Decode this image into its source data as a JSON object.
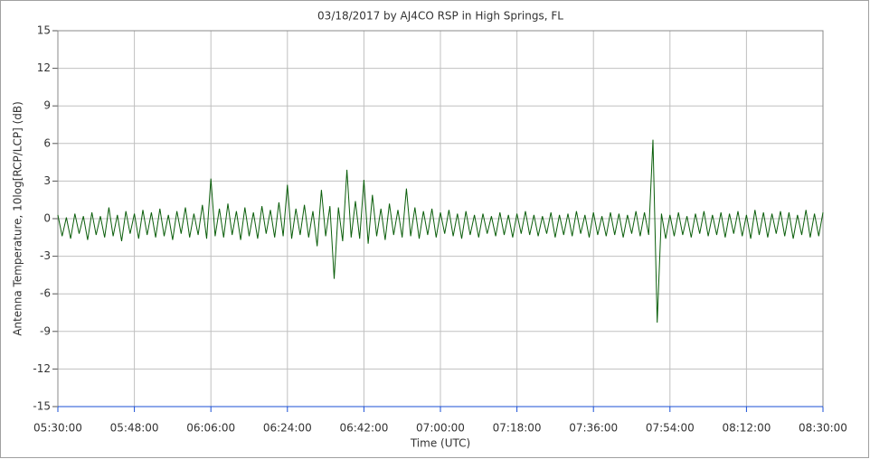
{
  "chart_data": {
    "type": "line",
    "title": "03/18/2017  by  AJ4CO RSP  in  High Springs, FL",
    "x_label": "Time (UTC)",
    "y_label": "Antenna Temperature, 10log[RCP/LCP] (dB)",
    "xlim": [
      "05:30:00",
      "08:30:00"
    ],
    "xticks": [
      "05:30:00",
      "05:48:00",
      "06:06:00",
      "06:24:00",
      "06:42:00",
      "07:00:00",
      "07:18:00",
      "07:36:00",
      "07:54:00",
      "08:12:00",
      "08:30:00"
    ],
    "ylim": [
      -15,
      15
    ],
    "yticks": [
      -15,
      -12,
      -9,
      -6,
      -3,
      0,
      3,
      6,
      9,
      12,
      15
    ],
    "grid": true,
    "x": [
      "05:30:00",
      "05:31:00",
      "05:32:00",
      "05:33:00",
      "05:34:00",
      "05:35:00",
      "05:36:00",
      "05:37:00",
      "05:38:00",
      "05:39:00",
      "05:40:00",
      "05:41:00",
      "05:42:00",
      "05:43:00",
      "05:44:00",
      "05:45:00",
      "05:46:00",
      "05:47:00",
      "05:48:00",
      "05:49:00",
      "05:50:00",
      "05:51:00",
      "05:52:00",
      "05:53:00",
      "05:54:00",
      "05:55:00",
      "05:56:00",
      "05:57:00",
      "05:58:00",
      "05:59:00",
      "06:00:00",
      "06:01:00",
      "06:02:00",
      "06:03:00",
      "06:04:00",
      "06:05:00",
      "06:06:00",
      "06:07:00",
      "06:08:00",
      "06:09:00",
      "06:10:00",
      "06:11:00",
      "06:12:00",
      "06:13:00",
      "06:14:00",
      "06:15:00",
      "06:16:00",
      "06:17:00",
      "06:18:00",
      "06:19:00",
      "06:20:00",
      "06:21:00",
      "06:22:00",
      "06:23:00",
      "06:24:00",
      "06:25:00",
      "06:26:00",
      "06:27:00",
      "06:28:00",
      "06:29:00",
      "06:30:00",
      "06:31:00",
      "06:32:00",
      "06:33:00",
      "06:34:00",
      "06:35:00",
      "06:36:00",
      "06:37:00",
      "06:38:00",
      "06:39:00",
      "06:40:00",
      "06:41:00",
      "06:42:00",
      "06:43:00",
      "06:44:00",
      "06:45:00",
      "06:46:00",
      "06:47:00",
      "06:48:00",
      "06:49:00",
      "06:50:00",
      "06:51:00",
      "06:52:00",
      "06:53:00",
      "06:54:00",
      "06:55:00",
      "06:56:00",
      "06:57:00",
      "06:58:00",
      "06:59:00",
      "07:00:00",
      "07:01:00",
      "07:02:00",
      "07:03:00",
      "07:04:00",
      "07:05:00",
      "07:06:00",
      "07:07:00",
      "07:08:00",
      "07:09:00",
      "07:10:00",
      "07:11:00",
      "07:12:00",
      "07:13:00",
      "07:14:00",
      "07:15:00",
      "07:16:00",
      "07:17:00",
      "07:18:00",
      "07:19:00",
      "07:20:00",
      "07:21:00",
      "07:22:00",
      "07:23:00",
      "07:24:00",
      "07:25:00",
      "07:26:00",
      "07:27:00",
      "07:28:00",
      "07:29:00",
      "07:30:00",
      "07:31:00",
      "07:32:00",
      "07:33:00",
      "07:34:00",
      "07:35:00",
      "07:36:00",
      "07:37:00",
      "07:38:00",
      "07:39:00",
      "07:40:00",
      "07:41:00",
      "07:42:00",
      "07:43:00",
      "07:44:00",
      "07:45:00",
      "07:46:00",
      "07:47:00",
      "07:48:00",
      "07:49:00",
      "07:50:00",
      "07:51:00",
      "07:52:00",
      "07:53:00",
      "07:54:00",
      "07:55:00",
      "07:56:00",
      "07:57:00",
      "07:58:00",
      "07:59:00",
      "08:00:00",
      "08:01:00",
      "08:02:00",
      "08:03:00",
      "08:04:00",
      "08:05:00",
      "08:06:00",
      "08:07:00",
      "08:08:00",
      "08:09:00",
      "08:10:00",
      "08:11:00",
      "08:12:00",
      "08:13:00",
      "08:14:00",
      "08:15:00",
      "08:16:00",
      "08:17:00",
      "08:18:00",
      "08:19:00",
      "08:20:00",
      "08:21:00",
      "08:22:00",
      "08:23:00",
      "08:24:00",
      "08:25:00",
      "08:26:00",
      "08:27:00",
      "08:28:00",
      "08:29:00",
      "08:30:00"
    ],
    "color": "#0b5e0b",
    "values": [
      0.3,
      -1.4,
      0.1,
      -1.6,
      0.4,
      -1.2,
      0.2,
      -1.7,
      0.5,
      -1.3,
      0.2,
      -1.5,
      0.9,
      -1.4,
      0.3,
      -1.8,
      0.6,
      -1.2,
      0.4,
      -1.6,
      0.7,
      -1.3,
      0.5,
      -1.5,
      0.8,
      -1.4,
      0.3,
      -1.7,
      0.6,
      -1.2,
      0.9,
      -1.5,
      0.4,
      -1.3,
      1.1,
      -1.6,
      3.2,
      -1.4,
      0.8,
      -1.5,
      1.2,
      -1.3,
      0.6,
      -1.7,
      0.9,
      -1.4,
      0.5,
      -1.6,
      1.0,
      -1.2,
      0.7,
      -1.5,
      1.3,
      -1.4,
      2.7,
      -1.6,
      0.8,
      -1.3,
      1.1,
      -1.5,
      0.6,
      -2.2,
      2.3,
      -1.4,
      1.0,
      -4.8,
      0.9,
      -1.8,
      3.9,
      -1.5,
      1.4,
      -1.6,
      3.1,
      -2.0,
      1.9,
      -1.4,
      0.8,
      -1.7,
      1.2,
      -1.3,
      0.7,
      -1.5,
      2.4,
      -1.4,
      0.9,
      -1.6,
      0.6,
      -1.3,
      0.8,
      -1.5,
      0.5,
      -1.2,
      0.7,
      -1.4,
      0.4,
      -1.6,
      0.6,
      -1.3,
      0.3,
      -1.5,
      0.4,
      -1.2,
      0.2,
      -1.4,
      0.5,
      -1.3,
      0.3,
      -1.5,
      0.4,
      -1.2,
      0.6,
      -1.3,
      0.3,
      -1.4,
      0.2,
      -1.2,
      0.5,
      -1.5,
      0.3,
      -1.3,
      0.4,
      -1.4,
      0.6,
      -1.2,
      0.3,
      -1.5,
      0.5,
      -1.3,
      0.2,
      -1.4,
      0.5,
      -1.3,
      0.4,
      -1.5,
      0.3,
      -1.2,
      0.6,
      -1.4,
      0.5,
      -1.3,
      6.3,
      -8.3,
      0.4,
      -1.6,
      0.3,
      -1.4,
      0.5,
      -1.3,
      0.2,
      -1.5,
      0.4,
      -1.2,
      0.6,
      -1.4,
      0.3,
      -1.3,
      0.5,
      -1.5,
      0.4,
      -1.2,
      0.6,
      -1.4,
      0.3,
      -1.6,
      0.7,
      -1.3,
      0.5,
      -1.5,
      0.4,
      -1.2,
      0.6,
      -1.4,
      0.5,
      -1.6,
      0.3,
      -1.3,
      0.7,
      -1.5,
      0.4,
      -1.4,
      0.5
    ]
  }
}
